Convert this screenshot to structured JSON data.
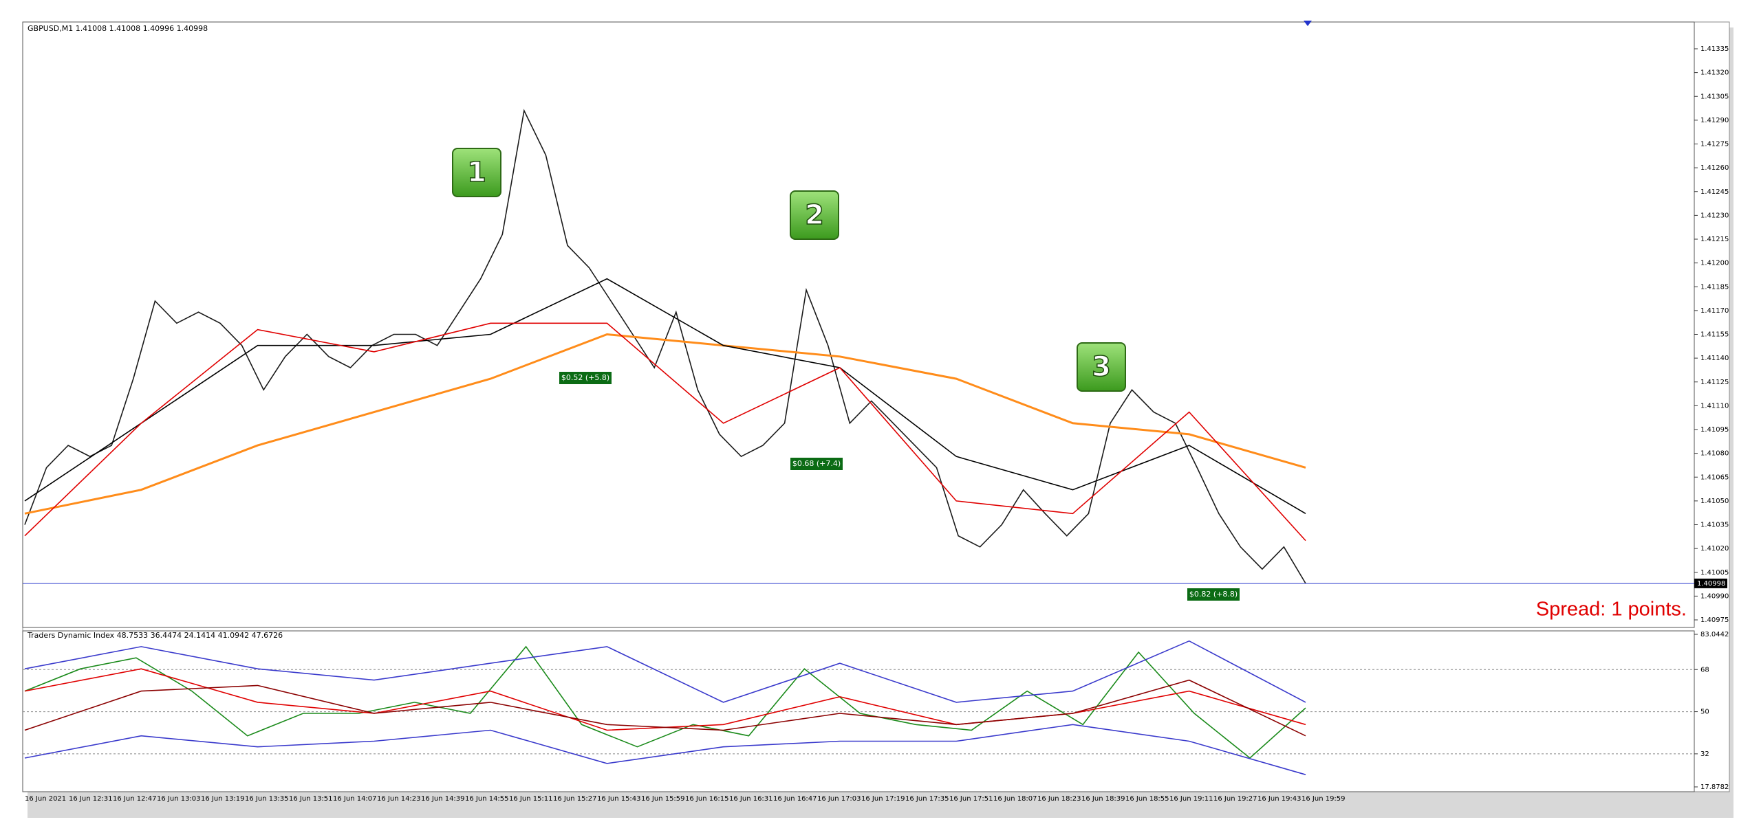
{
  "header": "GBPUSD,M1  1.41008 1.41008 1.40996 1.40998",
  "chart_data": [
    {
      "type": "line",
      "ylim": [
        1.40975,
        1.41335
      ],
      "yticks": [
        1.41335,
        {
          "value": 1.4132,
          "label": "1.41320"
        },
        1.41305,
        {
          "value": 1.4129,
          "label": "1.41290"
        },
        1.41275,
        {
          "value": 1.4126,
          "label": "1.41260"
        },
        1.41245,
        {
          "value": 1.4123,
          "label": "1.41230"
        },
        1.41215,
        {
          "value": 1.412,
          "label": "1.41200"
        },
        1.41185,
        {
          "value": 1.4117,
          "label": "1.41170"
        },
        1.41155,
        {
          "value": 1.4114,
          "label": "1.41140"
        },
        1.41125,
        {
          "value": 1.4111,
          "label": "1.41110"
        },
        1.41095,
        {
          "value": 1.4108,
          "label": "1.41080"
        },
        1.41065,
        {
          "value": 1.4105,
          "label": "1.41050"
        },
        1.41035,
        {
          "value": 1.4102,
          "label": "1.41020"
        },
        1.41005,
        {
          "value": 1.4099,
          "label": "1.40990"
        },
        1.40975
      ],
      "x_axis_labels": [
        "16 Jun 2021",
        "16 Jun 12:31",
        "16 Jun 12:47",
        "16 Jun 13:03",
        "16 Jun 13:19",
        "16 Jun 13:35",
        "16 Jun 13:51",
        "16 Jun 14:07",
        "16 Jun 14:23",
        "16 Jun 14:39",
        "16 Jun 14:55",
        "16 Jun 15:11",
        "16 Jun 15:27",
        "16 Jun 15:43",
        "16 Jun 15:59",
        "16 Jun 16:15",
        "16 Jun 16:31",
        "16 Jun 16:47",
        "16 Jun 17:03",
        "16 Jun 17:19",
        "16 Jun 17:35",
        "16 Jun 17:51",
        "16 Jun 18:07",
        "16 Jun 18:23",
        "16 Jun 18:39",
        "16 Jun 18:55",
        "16 Jun 19:11",
        "16 Jun 19:27",
        "16 Jun 19:43",
        "16 Jun 19:59"
      ],
      "series": [
        {
          "color": "#1a1a1a",
          "values": [
            1.41035,
            1.41071,
            1.41085,
            1.41078,
            1.41085,
            1.41127,
            1.41176,
            1.41162,
            1.41169,
            1.41162,
            1.41148,
            1.4112,
            1.41141,
            1.41155,
            1.41141,
            1.41134,
            1.41148,
            1.41155,
            1.41155,
            1.41148,
            1.41169,
            1.4119,
            1.41218,
            1.41296,
            1.41268,
            1.41211,
            1.41197,
            1.41176,
            1.41155,
            1.41134,
            1.41169,
            1.4112,
            1.41092,
            1.41078,
            1.41085,
            1.41099,
            1.41183,
            1.41148,
            1.41099,
            1.41113,
            1.41099,
            1.41085,
            1.41071,
            1.41028,
            1.41021,
            1.41035,
            1.41057,
            1.41042,
            1.41028,
            1.41042,
            1.41099,
            1.4112,
            1.41106,
            1.41099,
            1.41071,
            1.41042,
            1.41021,
            1.41007,
            1.41021,
            1.40998
          ]
        },
        {
          "color": "#ff8c1a",
          "values": [
            1.41042,
            1.41057,
            1.41085,
            1.41106,
            1.41127,
            1.41155,
            1.41148,
            1.41141,
            1.41127,
            1.41099,
            1.41092,
            1.41071
          ]
        },
        {
          "color": "#000000",
          "values": [
            1.4105,
            1.41099,
            1.41148,
            1.41148,
            1.41155,
            1.4119,
            1.41148,
            1.41134,
            1.41078,
            1.41057,
            1.41085,
            1.41042
          ]
        },
        {
          "color": "#e00000",
          "values": [
            1.41028,
            1.41099,
            1.41158,
            1.41144,
            1.41162,
            1.41162,
            1.41099,
            1.41134,
            1.4105,
            1.41042,
            1.41106,
            1.41025
          ]
        }
      ],
      "current_price": {
        "value": 1.40998,
        "label": "1.40998"
      },
      "markers": [
        "1",
        "2",
        "3"
      ],
      "trade_labels": [
        "$0.52 (+5.8)",
        "$0.68 (+7.4)",
        "$0.82 (+8.8)"
      ],
      "spread": "Spread: 1 points."
    },
    {
      "type": "line",
      "title": "Traders Dynamic Index 48.7533 36.4474 24.1414 41.0942 47.6726",
      "ylim": [
        17.8782,
        83.0442
      ],
      "yticks": [
        83.0442,
        68,
        50,
        32,
        17.8782
      ],
      "series": [
        {
          "color": "#1a8a1a",
          "values": [
            58.8,
            68.3,
            73.0,
            58.8,
            39.7,
            49.3,
            49.3,
            54.0,
            49.3,
            77.8,
            44.5,
            35.0,
            44.5,
            39.7,
            68.3,
            49.3,
            44.5,
            42.1,
            58.8,
            44.5,
            75.4,
            49.3,
            30.2,
            51.6
          ]
        },
        {
          "color": "#e00000",
          "values": [
            58.8,
            68.3,
            54.0,
            49.3,
            58.8,
            42.1,
            44.5,
            56.4,
            44.5,
            49.3,
            58.8,
            44.5
          ]
        },
        {
          "color": "#8b0000",
          "values": [
            42.1,
            58.8,
            61.2,
            49.3,
            54.0,
            44.5,
            42.1,
            49.3,
            44.5,
            49.3,
            63.5,
            39.7
          ]
        },
        {
          "color": "#3a3acc",
          "values": [
            68.3,
            77.8,
            68.3,
            63.5,
            70.7,
            77.8,
            54.0,
            70.7,
            54.0,
            58.8,
            80.2,
            54.0
          ]
        },
        {
          "color": "#3a3acc",
          "values": [
            30.2,
            39.7,
            35.0,
            37.4,
            42.1,
            27.9,
            35.0,
            37.4,
            37.4,
            44.5,
            37.4,
            23.1
          ]
        }
      ]
    }
  ]
}
